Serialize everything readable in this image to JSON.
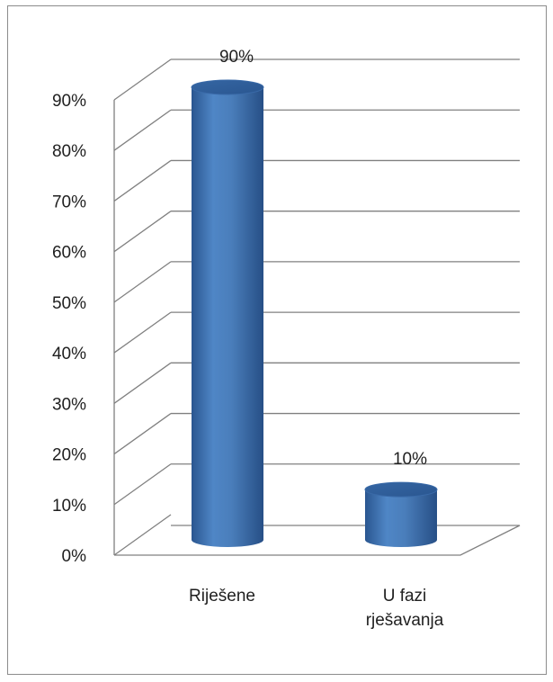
{
  "chart_data": {
    "type": "bar",
    "style": "3d-cylinder",
    "categories": [
      "Riješene",
      "U fazi rješavanja"
    ],
    "category_lines": [
      [
        "Riješene"
      ],
      [
        "U fazi",
        "rješavanja"
      ]
    ],
    "values": [
      90,
      10
    ],
    "data_labels": [
      "90%",
      "10%"
    ],
    "ylim": [
      0,
      90
    ],
    "yticks": [
      0,
      10,
      20,
      30,
      40,
      50,
      60,
      70,
      80,
      90
    ],
    "ytick_labels": [
      "0%",
      "10%",
      "20%",
      "30%",
      "40%",
      "50%",
      "60%",
      "70%",
      "80%",
      "90%"
    ],
    "grid": true,
    "legend": "none",
    "colors": {
      "bar": "#4a7ebb",
      "bar_dark": "#2a5690",
      "bar_light": "#6b9ad2",
      "grid": "#808080"
    }
  }
}
